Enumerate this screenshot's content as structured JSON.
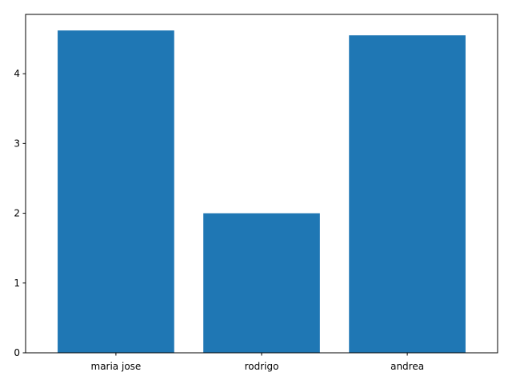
{
  "chart_data": {
    "type": "bar",
    "categories": [
      "maria jose",
      "rodrigo",
      "andrea"
    ],
    "values": [
      4.62,
      2.0,
      4.55
    ],
    "title": "",
    "xlabel": "",
    "ylabel": "",
    "ylim": [
      0,
      4.85
    ],
    "yticks": [
      0,
      1,
      2,
      3,
      4
    ],
    "grid": false,
    "legend": "none",
    "bar_color": "#1f77b4"
  }
}
